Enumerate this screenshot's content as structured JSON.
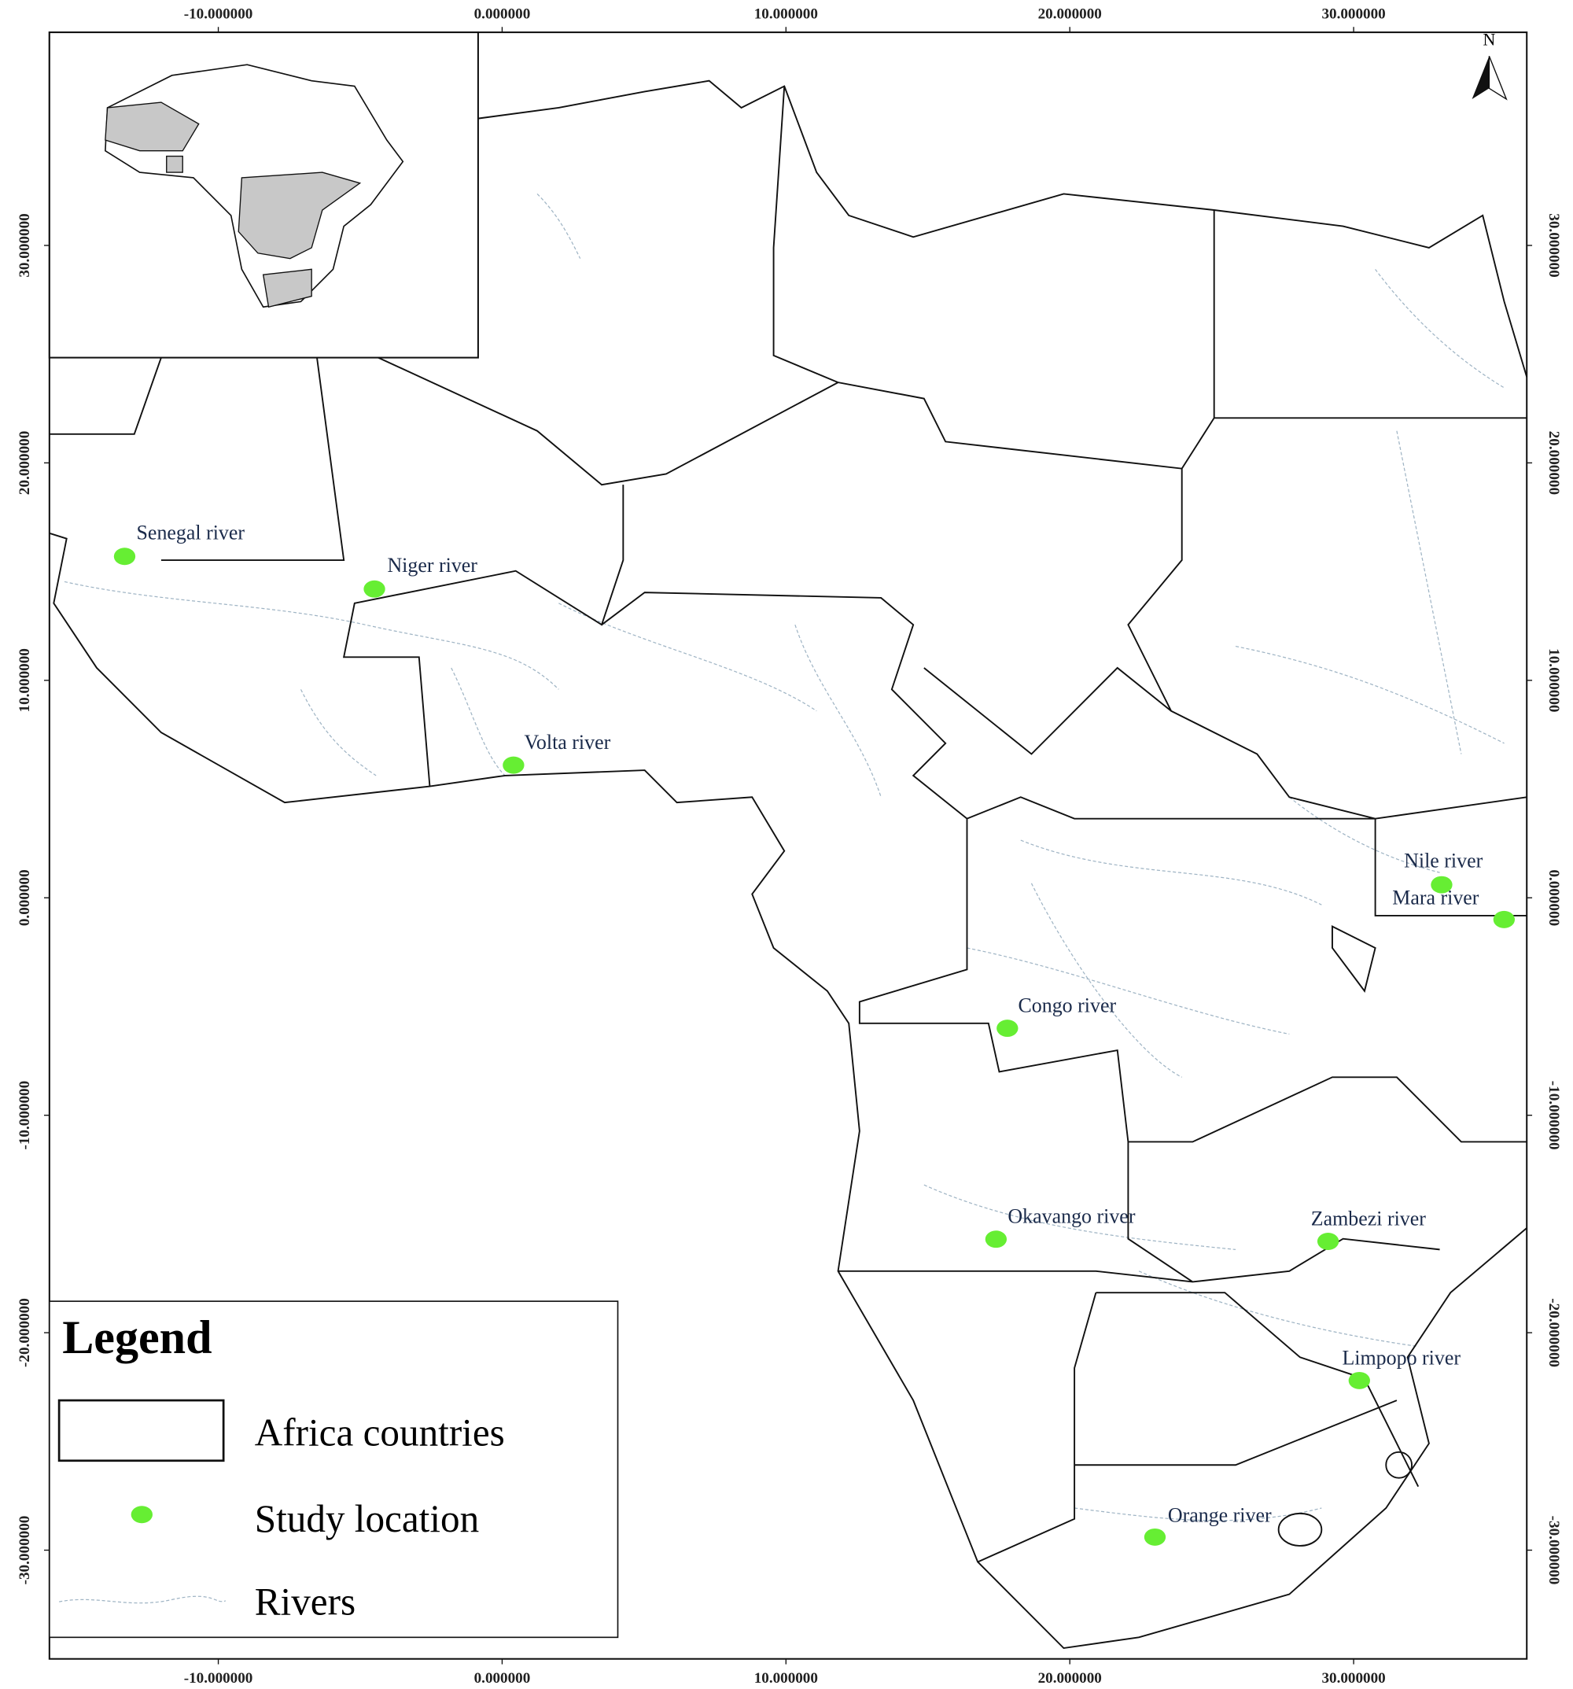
{
  "map": {
    "xlim": [
      -15.95,
      36.1
    ],
    "ylim": [
      -35.0,
      39.8
    ],
    "xticks": [
      {
        "value": -10,
        "label": "-10.000000"
      },
      {
        "value": 0,
        "label": "0.000000"
      },
      {
        "value": 10,
        "label": "10.000000"
      },
      {
        "value": 20,
        "label": "20.000000"
      },
      {
        "value": 30,
        "label": "30.000000"
      }
    ],
    "yticks": [
      {
        "value": 30,
        "label": "30.000000"
      },
      {
        "value": 20,
        "label": "20.000000"
      },
      {
        "value": 10,
        "label": "10.000000"
      },
      {
        "value": 0,
        "label": "0.000000"
      },
      {
        "value": -10,
        "label": "-10.000000"
      },
      {
        "value": -20,
        "label": "-20.000000"
      },
      {
        "value": -30,
        "label": "-30.000000"
      }
    ],
    "point_color": "#66ee33",
    "locations": [
      {
        "name": "Senegal river",
        "lon": -13.3,
        "lat": 15.7
      },
      {
        "name": "Niger river",
        "lon": -4.5,
        "lat": 14.2
      },
      {
        "name": "Volta river",
        "lon": 0.4,
        "lat": 6.1
      },
      {
        "name": "Nile river",
        "lon": 33.1,
        "lat": 0.6
      },
      {
        "name": "Mara river",
        "lon": 35.3,
        "lat": -1.0
      },
      {
        "name": "Congo river",
        "lon": 17.8,
        "lat": -6.0
      },
      {
        "name": "Okavango river",
        "lon": 17.4,
        "lat": -15.7
      },
      {
        "name": "Zambezi river",
        "lon": 29.1,
        "lat": -15.8
      },
      {
        "name": "Limpopo river",
        "lon": 30.2,
        "lat": -22.2
      },
      {
        "name": "Orange river",
        "lon": 23.0,
        "lat": -29.4
      }
    ]
  },
  "legend": {
    "title": "Legend",
    "items": [
      "Africa countries",
      "Study location",
      "Rivers"
    ]
  },
  "north": "N"
}
